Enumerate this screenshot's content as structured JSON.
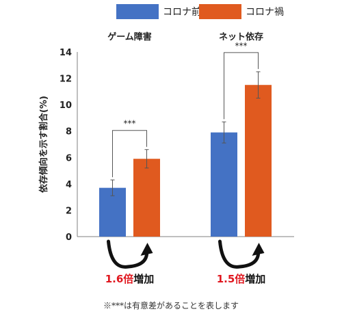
{
  "chart_data": {
    "type": "bar",
    "groups": [
      "ゲーム障害",
      "ネット依存"
    ],
    "series": [
      {
        "name": "コロナ前",
        "values": [
          3.7,
          7.9
        ],
        "errors": [
          0.6,
          0.8
        ],
        "color": "#4472C4"
      },
      {
        "name": "コロナ禍",
        "values": [
          5.9,
          11.5
        ],
        "errors": [
          0.7,
          1.0
        ],
        "color": "#E05A1F"
      }
    ],
    "ylabel": "依存傾向を示す割合(%)",
    "ylim": [
      0,
      14
    ],
    "yticks": [
      "0",
      "2",
      "4",
      "6",
      "8",
      "10",
      "12",
      "14"
    ],
    "significance": [
      "***",
      "***"
    ],
    "increase": [
      {
        "factor": "1.6倍",
        "suffix": "増加"
      },
      {
        "factor": "1.5倍",
        "suffix": "増加"
      }
    ],
    "grid": false,
    "legend_position": "top"
  },
  "footnote": "※***は有意差があることを表します"
}
